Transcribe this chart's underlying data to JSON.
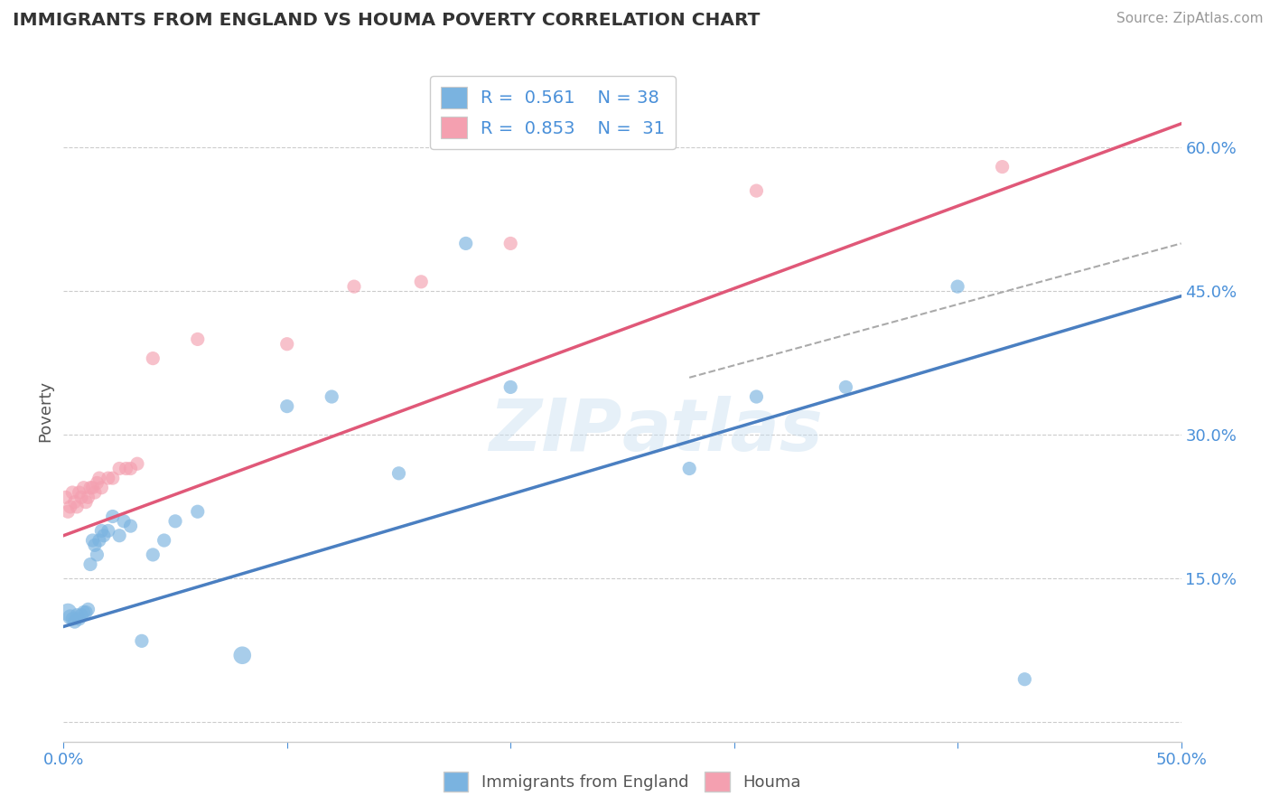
{
  "title": "IMMIGRANTS FROM ENGLAND VS HOUMA POVERTY CORRELATION CHART",
  "source": "Source: ZipAtlas.com",
  "ylabel": "Poverty",
  "xlim": [
    0.0,
    0.5
  ],
  "ylim": [
    -0.02,
    0.67
  ],
  "legend": {
    "blue_R": "0.561",
    "blue_N": "38",
    "pink_R": "0.853",
    "pink_N": "31"
  },
  "watermark": "ZIPatlas",
  "blue_color": "#7ab3e0",
  "pink_color": "#f4a0b0",
  "blue_line_color": "#4a7fc1",
  "pink_line_color": "#e05878",
  "dashed_line_color": "#aaaaaa",
  "blue_line": {
    "x0": 0.0,
    "y0": 0.1,
    "x1": 0.5,
    "y1": 0.445
  },
  "pink_line": {
    "x0": 0.0,
    "y0": 0.195,
    "x1": 0.5,
    "y1": 0.625
  },
  "dash_line": {
    "x0": 0.28,
    "y0": 0.36,
    "x1": 0.5,
    "y1": 0.5
  },
  "blue_scatter": {
    "x": [
      0.002,
      0.003,
      0.004,
      0.005,
      0.006,
      0.007,
      0.008,
      0.009,
      0.01,
      0.011,
      0.012,
      0.013,
      0.014,
      0.015,
      0.016,
      0.017,
      0.018,
      0.02,
      0.022,
      0.025,
      0.027,
      0.03,
      0.035,
      0.04,
      0.045,
      0.05,
      0.06,
      0.08,
      0.1,
      0.12,
      0.15,
      0.18,
      0.2,
      0.28,
      0.31,
      0.35,
      0.4,
      0.43
    ],
    "y": [
      0.115,
      0.11,
      0.108,
      0.105,
      0.112,
      0.108,
      0.112,
      0.115,
      0.115,
      0.118,
      0.165,
      0.19,
      0.185,
      0.175,
      0.19,
      0.2,
      0.195,
      0.2,
      0.215,
      0.195,
      0.21,
      0.205,
      0.085,
      0.175,
      0.19,
      0.21,
      0.22,
      0.07,
      0.33,
      0.34,
      0.26,
      0.5,
      0.35,
      0.265,
      0.34,
      0.35,
      0.455,
      0.045
    ],
    "sizes": [
      200,
      150,
      120,
      120,
      120,
      120,
      120,
      120,
      120,
      120,
      120,
      120,
      120,
      120,
      120,
      120,
      120,
      120,
      120,
      120,
      120,
      120,
      120,
      120,
      120,
      120,
      120,
      200,
      120,
      120,
      120,
      120,
      120,
      120,
      120,
      120,
      120,
      120
    ]
  },
  "pink_scatter": {
    "x": [
      0.001,
      0.002,
      0.003,
      0.004,
      0.005,
      0.006,
      0.007,
      0.008,
      0.009,
      0.01,
      0.011,
      0.012,
      0.013,
      0.014,
      0.015,
      0.016,
      0.017,
      0.02,
      0.022,
      0.025,
      0.028,
      0.03,
      0.033,
      0.04,
      0.06,
      0.1,
      0.13,
      0.16,
      0.2,
      0.31,
      0.42
    ],
    "y": [
      0.235,
      0.22,
      0.225,
      0.24,
      0.23,
      0.225,
      0.24,
      0.235,
      0.245,
      0.23,
      0.235,
      0.245,
      0.245,
      0.24,
      0.25,
      0.255,
      0.245,
      0.255,
      0.255,
      0.265,
      0.265,
      0.265,
      0.27,
      0.38,
      0.4,
      0.395,
      0.455,
      0.46,
      0.5,
      0.555,
      0.58
    ],
    "sizes": [
      120,
      120,
      120,
      120,
      120,
      120,
      120,
      120,
      120,
      120,
      120,
      120,
      120,
      120,
      120,
      120,
      120,
      120,
      120,
      120,
      120,
      120,
      120,
      120,
      120,
      120,
      120,
      120,
      120,
      120,
      120
    ]
  },
  "yticks": [
    0.0,
    0.15,
    0.3,
    0.45,
    0.6
  ],
  "ytick_labels": [
    "",
    "15.0%",
    "30.0%",
    "45.0%",
    "60.0%"
  ],
  "xticks": [
    0.0,
    0.1,
    0.2,
    0.3,
    0.4,
    0.5
  ],
  "xtick_labels": [
    "0.0%",
    "",
    "",
    "",
    "",
    "50.0%"
  ]
}
